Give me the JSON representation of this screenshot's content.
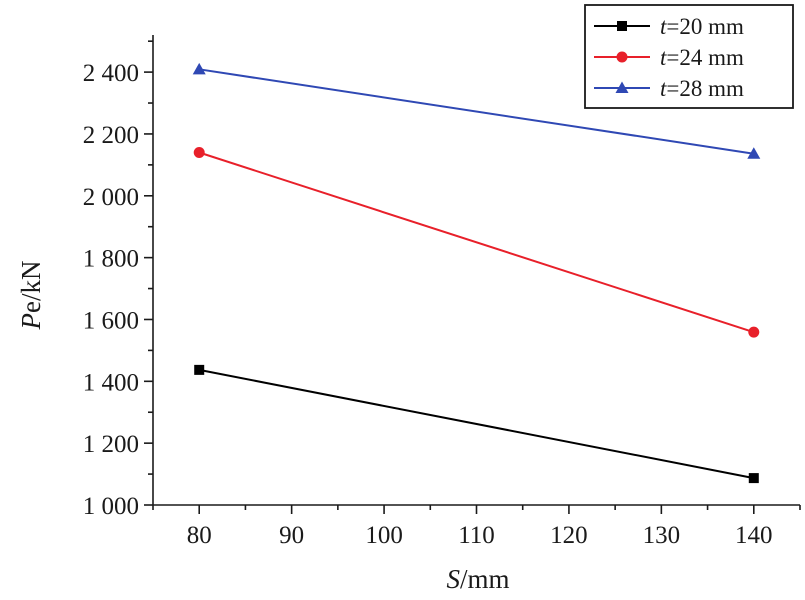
{
  "chart_data": {
    "type": "line",
    "xlabel": {
      "var": "S",
      "unit": "/mm"
    },
    "ylabel": {
      "var": "P",
      "sub": "e",
      "unit": "/kN"
    },
    "xlim": [
      75,
      145
    ],
    "ylim": [
      1000,
      2520
    ],
    "x_ticks": [
      80,
      90,
      100,
      110,
      120,
      130,
      140
    ],
    "x_tick_labels": [
      "80",
      "90",
      "100",
      "110",
      "120",
      "130",
      "140"
    ],
    "y_ticks": [
      1000,
      1200,
      1400,
      1600,
      1800,
      2000,
      2200,
      2400
    ],
    "y_tick_labels": [
      "1 000",
      "1 200",
      "1 400",
      "1 600",
      "1 800",
      "2 000",
      "2 200",
      "2 400"
    ],
    "grid": false,
    "legend_position": "top-right",
    "series": [
      {
        "name": "t=20 mm",
        "var": "t",
        "rest": "=20 mm",
        "color": "#000000",
        "marker": "square",
        "x": [
          80,
          140
        ],
        "y": [
          1437,
          1087
        ]
      },
      {
        "name": "t=24 mm",
        "var": "t",
        "rest": "=24 mm",
        "color": "#e8202a",
        "marker": "circle",
        "x": [
          80,
          140
        ],
        "y": [
          2140,
          1559
        ]
      },
      {
        "name": "t=28 mm",
        "var": "t",
        "rest": "=28 mm",
        "color": "#2f48b4",
        "marker": "triangle",
        "x": [
          80,
          140
        ],
        "y": [
          2409,
          2136
        ]
      }
    ]
  }
}
